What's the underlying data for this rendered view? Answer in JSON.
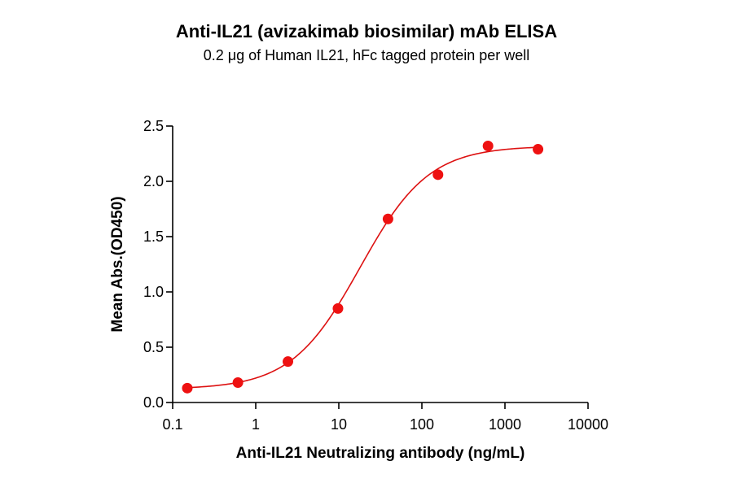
{
  "chart_data": {
    "type": "scatter",
    "title": "Anti-IL21 (avizakimab biosimilar) mAb ELISA",
    "subtitle": "0.2 μg of Human IL21, hFc tagged protein per well",
    "xlabel": "Anti-IL21 Neutralizing antibody (ng/mL)",
    "ylabel": "Mean Abs.(OD450)",
    "x_scale": "log",
    "xlim": [
      0.1,
      10000
    ],
    "ylim": [
      0,
      2.5
    ],
    "x_ticks": [
      {
        "value": 0.1,
        "label": "0.1"
      },
      {
        "value": 1,
        "label": "1"
      },
      {
        "value": 10,
        "label": "10"
      },
      {
        "value": 100,
        "label": "100"
      },
      {
        "value": 1000,
        "label": "1000"
      },
      {
        "value": 10000,
        "label": "10000"
      }
    ],
    "y_ticks": [
      {
        "value": 0,
        "label": "0.0"
      },
      {
        "value": 0.5,
        "label": "0.5"
      },
      {
        "value": 1.0,
        "label": "1.0"
      },
      {
        "value": 1.5,
        "label": "1.5"
      },
      {
        "value": 2.0,
        "label": "2.0"
      },
      {
        "value": 2.5,
        "label": "2.5"
      }
    ],
    "series": [
      {
        "x": [
          0.15,
          0.61,
          2.44,
          9.77,
          39.1,
          156.3,
          625,
          2500
        ],
        "y": [
          0.13,
          0.18,
          0.37,
          0.85,
          1.66,
          2.06,
          2.32,
          2.29
        ]
      }
    ],
    "fit_curve": true,
    "colors": {
      "points": "#ee1111",
      "curve": "#dd1111",
      "axis": "#000000"
    },
    "grid": false,
    "legend": "none"
  }
}
